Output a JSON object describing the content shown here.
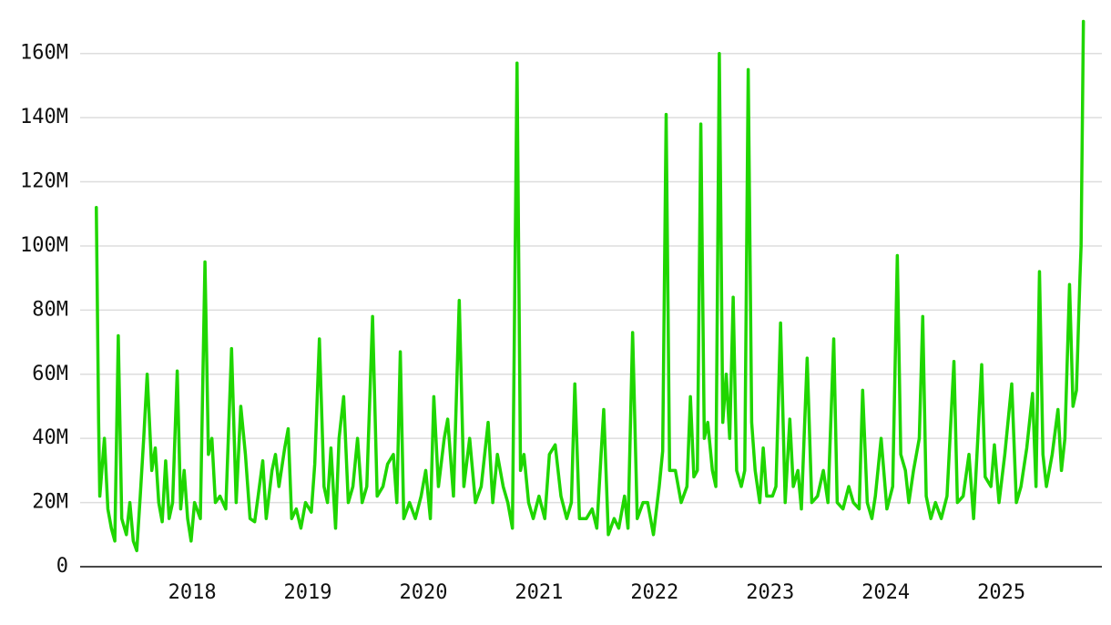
{
  "chart_data": {
    "type": "line",
    "color": "#1fd600",
    "grid": true,
    "xlim": [
      2017.03,
      2025.87
    ],
    "xticks": [
      2018,
      2019,
      2020,
      2021,
      2022,
      2023,
      2024,
      2025
    ],
    "ylim": [
      0,
      171
    ],
    "yticks": [
      0,
      {
        "value": 20,
        "label": "20M"
      },
      {
        "value": 40,
        "label": "40M"
      },
      {
        "value": 60,
        "label": "60M"
      },
      {
        "value": 80,
        "label": "80M"
      },
      {
        "value": 100,
        "label": "100M"
      },
      {
        "value": 120,
        "label": "120M"
      },
      {
        "value": 140,
        "label": "140M"
      },
      {
        "value": 160,
        "label": "160M"
      }
    ],
    "x": [
      2017.17,
      2017.19,
      2017.2,
      2017.24,
      2017.27,
      2017.3,
      2017.33,
      2017.36,
      2017.39,
      2017.43,
      2017.46,
      2017.49,
      2017.52,
      2017.55,
      2017.58,
      2017.61,
      2017.65,
      2017.68,
      2017.71,
      2017.74,
      2017.77,
      2017.8,
      2017.83,
      2017.87,
      2017.9,
      2017.93,
      2017.96,
      2017.99,
      2018.02,
      2018.07,
      2018.11,
      2018.14,
      2018.17,
      2018.2,
      2018.24,
      2018.29,
      2018.34,
      2018.38,
      2018.42,
      2018.46,
      2018.5,
      2018.54,
      2018.57,
      2018.61,
      2018.64,
      2018.69,
      2018.72,
      2018.75,
      2018.8,
      2018.83,
      2018.86,
      2018.9,
      2018.94,
      2018.98,
      2019.03,
      2019.06,
      2019.1,
      2019.14,
      2019.17,
      2019.2,
      2019.24,
      2019.27,
      2019.31,
      2019.35,
      2019.39,
      2019.43,
      2019.47,
      2019.51,
      2019.56,
      2019.6,
      2019.65,
      2019.69,
      2019.74,
      2019.77,
      2019.8,
      2019.83,
      2019.88,
      2019.93,
      2019.98,
      2020.02,
      2020.06,
      2020.09,
      2020.13,
      2020.18,
      2020.21,
      2020.26,
      2020.31,
      2020.35,
      2020.4,
      2020.45,
      2020.5,
      2020.56,
      2020.6,
      2020.64,
      2020.69,
      2020.73,
      2020.77,
      2020.81,
      2020.84,
      2020.87,
      2020.91,
      2020.95,
      2021.0,
      2021.05,
      2021.09,
      2021.14,
      2021.19,
      2021.24,
      2021.28,
      2021.31,
      2021.35,
      2021.41,
      2021.46,
      2021.5,
      2021.56,
      2021.6,
      2021.65,
      2021.69,
      2021.74,
      2021.77,
      2021.81,
      2021.85,
      2021.9,
      2021.94,
      2021.99,
      2022.04,
      2022.07,
      2022.1,
      2022.13,
      2022.18,
      2022.23,
      2022.28,
      2022.31,
      2022.34,
      2022.37,
      2022.4,
      2022.43,
      2022.46,
      2022.5,
      2022.53,
      2022.56,
      2022.59,
      2022.62,
      2022.65,
      2022.68,
      2022.71,
      2022.75,
      2022.78,
      2022.81,
      2022.84,
      2022.87,
      2022.91,
      2022.94,
      2022.97,
      2023.02,
      2023.05,
      2023.09,
      2023.13,
      2023.17,
      2023.2,
      2023.24,
      2023.27,
      2023.32,
      2023.36,
      2023.41,
      2023.46,
      2023.5,
      2023.55,
      2023.58,
      2023.63,
      2023.68,
      2023.72,
      2023.77,
      2023.8,
      2023.84,
      2023.88,
      2023.91,
      2023.96,
      2024.01,
      2024.06,
      2024.1,
      2024.13,
      2024.17,
      2024.2,
      2024.24,
      2024.29,
      2024.32,
      2024.35,
      2024.39,
      2024.43,
      2024.48,
      2024.53,
      2024.59,
      2024.62,
      2024.67,
      2024.72,
      2024.76,
      2024.83,
      2024.86,
      2024.91,
      2024.94,
      2024.98,
      2025.03,
      2025.09,
      2025.13,
      2025.17,
      2025.22,
      2025.27,
      2025.3,
      2025.33,
      2025.36,
      2025.39,
      2025.44,
      2025.49,
      2025.52,
      2025.55,
      2025.59,
      2025.62,
      2025.65,
      2025.68,
      2025.69,
      2025.71
    ],
    "values": [
      112,
      45,
      22,
      40,
      18,
      12,
      8,
      72,
      15,
      10,
      20,
      8,
      5,
      22,
      40,
      60,
      30,
      37,
      20,
      14,
      33,
      15,
      20,
      61,
      18,
      30,
      15,
      8,
      20,
      15,
      95,
      35,
      40,
      20,
      22,
      18,
      68,
      20,
      50,
      35,
      15,
      14,
      22,
      33,
      15,
      30,
      35,
      25,
      37,
      43,
      15,
      18,
      12,
      20,
      17,
      32,
      71,
      25,
      20,
      37,
      12,
      40,
      53,
      20,
      25,
      40,
      20,
      25,
      78,
      22,
      25,
      32,
      35,
      20,
      67,
      15,
      20,
      15,
      22,
      30,
      15,
      53,
      25,
      40,
      46,
      22,
      83,
      25,
      40,
      20,
      25,
      45,
      20,
      35,
      25,
      20,
      12,
      157,
      30,
      35,
      20,
      15,
      22,
      15,
      35,
      38,
      22,
      15,
      20,
      57,
      15,
      15,
      18,
      12,
      49,
      10,
      15,
      12,
      22,
      12,
      73,
      15,
      20,
      20,
      10,
      25,
      36,
      141,
      30,
      30,
      20,
      25,
      53,
      28,
      30,
      138,
      40,
      45,
      30,
      25,
      160,
      45,
      60,
      40,
      84,
      30,
      25,
      30,
      155,
      45,
      30,
      20,
      37,
      22,
      22,
      25,
      76,
      20,
      46,
      25,
      30,
      18,
      65,
      20,
      22,
      30,
      20,
      71,
      20,
      18,
      25,
      20,
      18,
      55,
      20,
      15,
      22,
      40,
      18,
      25,
      97,
      35,
      30,
      20,
      30,
      40,
      78,
      22,
      15,
      20,
      15,
      22,
      64,
      20,
      22,
      35,
      15,
      63,
      28,
      25,
      38,
      20,
      35,
      57,
      20,
      25,
      37,
      54,
      25,
      92,
      35,
      25,
      35,
      49,
      30,
      40,
      88,
      50,
      55,
      90,
      100,
      170
    ]
  }
}
